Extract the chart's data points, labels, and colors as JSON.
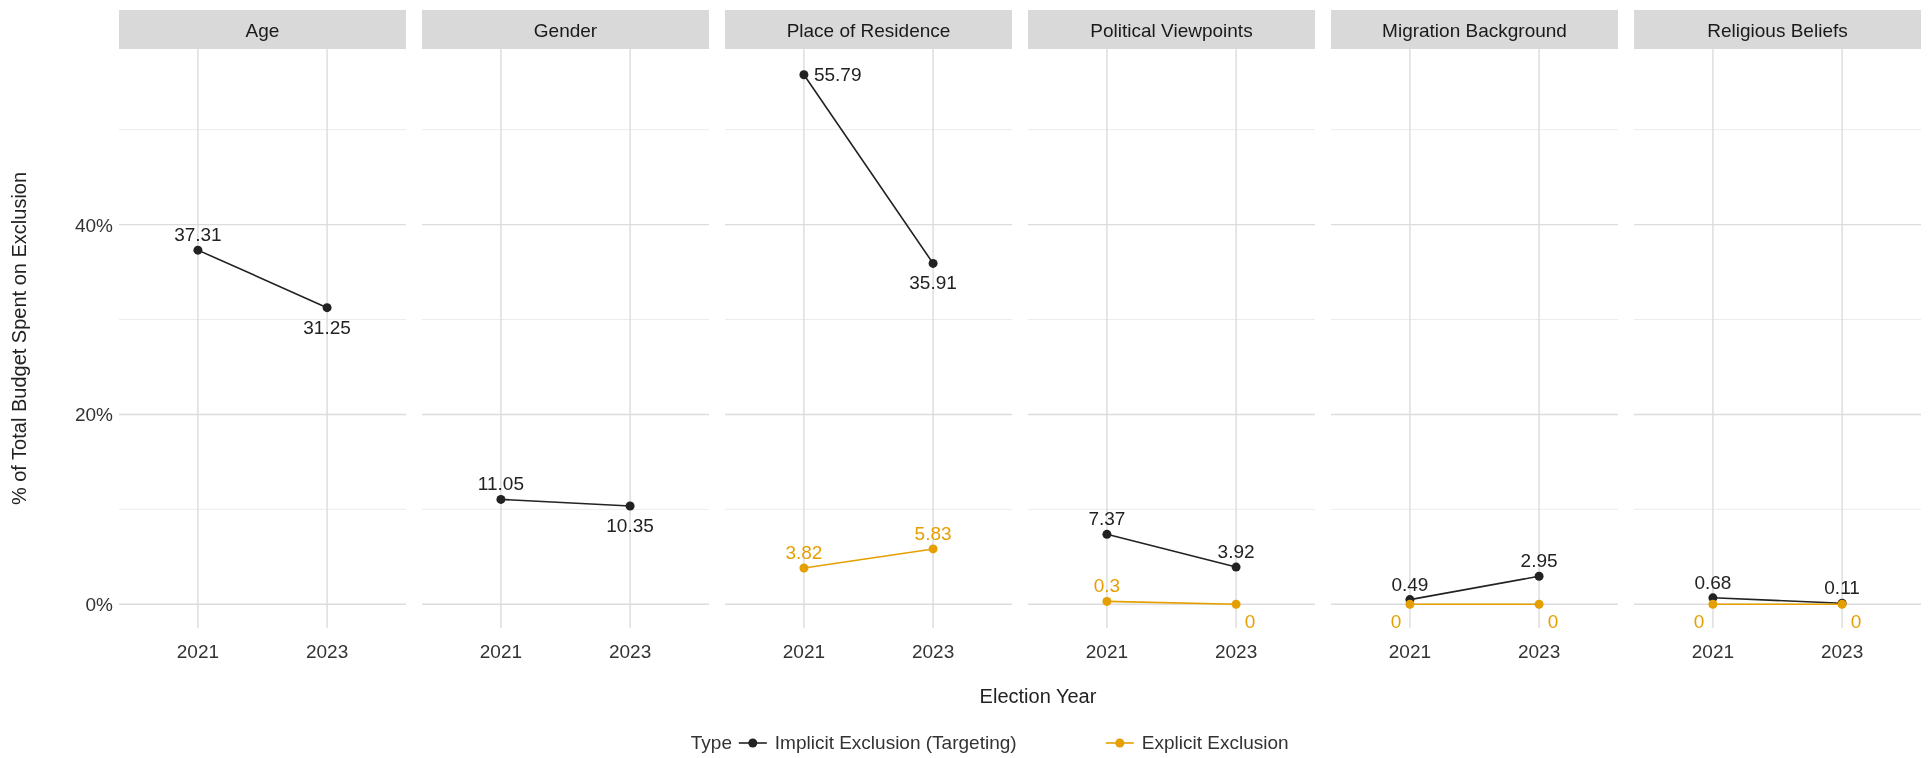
{
  "chart_data": [
    {
      "type": "line",
      "title": "Age",
      "ylabel": "% of Total Budget Spent on Exclusion",
      "categories": [
        "2021",
        "2023"
      ],
      "ylim": [
        -2.5,
        58.5
      ],
      "yticks": [
        {
          "value": 0,
          "label": "0%"
        },
        {
          "value": 10,
          "label": null
        },
        {
          "value": 20,
          "label": "20%"
        },
        {
          "value": 30,
          "label": null
        },
        {
          "value": 40,
          "label": "40%"
        },
        {
          "value": 50,
          "label": null
        }
      ],
      "grid": true,
      "marker": "circle",
      "data_labels": true,
      "series": [
        {
          "color": "#222222",
          "values": [
            37.31,
            31.25
          ]
        }
      ]
    },
    {
      "type": "line",
      "title": "Gender",
      "categories": [
        "2021",
        "2023"
      ],
      "ylim": [
        -2.5,
        58.5
      ],
      "grid": true,
      "marker": "circle",
      "data_labels": true,
      "tick_labels": "x",
      "series": [
        {
          "color": "#222222",
          "values": [
            11.05,
            10.35
          ]
        }
      ]
    },
    {
      "type": "line",
      "title": "Place of Residence",
      "categories": [
        "2021",
        "2023"
      ],
      "ylim": [
        -2.5,
        58.5
      ],
      "grid": true,
      "marker": "circle",
      "data_labels": true,
      "tick_labels": "x",
      "legend": "bottom",
      "legend_title": "Type",
      "series": [
        {
          "name": "Implicit Exclusion (Targeting)",
          "color": "#222222",
          "values": [
            55.79,
            35.91
          ]
        },
        {
          "name": "Explicit Exclusion",
          "color": "#e69f00",
          "values": [
            3.82,
            5.83
          ]
        }
      ]
    },
    {
      "type": "line",
      "title": "Political Viewpoints",
      "xlabel": "Election Year",
      "categories": [
        "2021",
        "2023"
      ],
      "ylim": [
        -2.5,
        58.5
      ],
      "grid": true,
      "marker": "circle",
      "data_labels": true,
      "tick_labels": "x",
      "series": [
        {
          "color": "#222222",
          "values": [
            7.37,
            3.92
          ]
        },
        {
          "color": "#e69f00",
          "values": [
            0.3,
            0
          ]
        }
      ]
    },
    {
      "type": "line",
      "title": "Migration Background",
      "categories": [
        "2021",
        "2023"
      ],
      "ylim": [
        -2.5,
        58.5
      ],
      "grid": true,
      "marker": "circle",
      "data_labels": true,
      "tick_labels": "x",
      "series": [
        {
          "color": "#222222",
          "values": [
            0.49,
            2.95
          ]
        },
        {
          "color": "#e69f00",
          "values": [
            0,
            0
          ]
        }
      ]
    },
    {
      "type": "line",
      "title": "Religious Beliefs",
      "categories": [
        "2021",
        "2023"
      ],
      "ylim": [
        -2.5,
        58.5
      ],
      "grid": true,
      "marker": "circle",
      "data_labels": true,
      "tick_labels": "x",
      "series": [
        {
          "color": "#222222",
          "values": [
            0.68,
            0.11
          ]
        },
        {
          "color": "#e69f00",
          "values": [
            0,
            0
          ]
        }
      ]
    }
  ]
}
